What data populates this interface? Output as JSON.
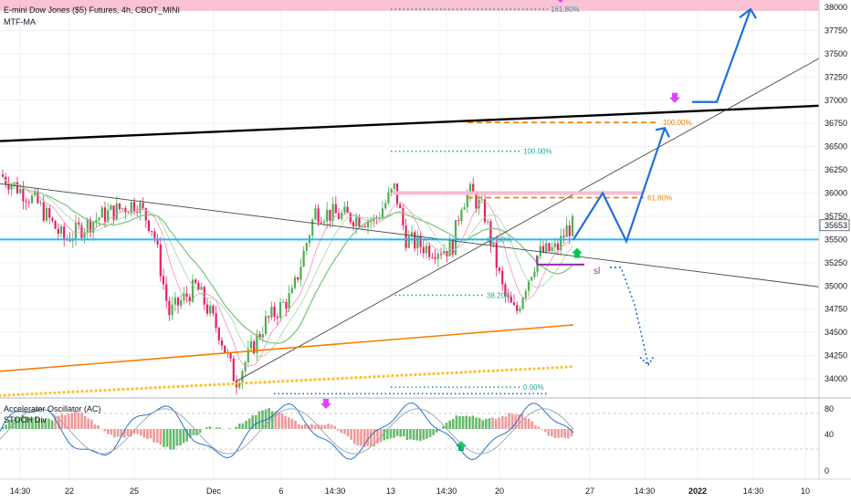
{
  "header": {
    "title": "E-mini Dow Jones ($5) Futures, 4h, CBOT_MINI",
    "indicator": "MTF-MA"
  },
  "oscillator": {
    "label1": "Accelerator Oscillator (AC)",
    "label2": "STOCH Div"
  },
  "colors": {
    "bull": "#26a69a",
    "bull_candle": "#4caf50",
    "bear": "#e91e63",
    "support_line": "#29b6f6",
    "trend_black": "#000000",
    "fib": "#26a69a",
    "orange": "#f57c00",
    "projection": "#1e6fe0",
    "pink_zone": "#f8bbd0",
    "marker_magenta": "#e040fb",
    "marker_green": "#00c853",
    "sl": "#9c27b0"
  },
  "chart_data": {
    "type": "candlestick",
    "price_axis": {
      "ticks": [
        34000,
        34250,
        34500,
        34750,
        35000,
        35250,
        35500,
        35750,
        36000,
        36250,
        36500,
        36750,
        37000,
        37250,
        37500,
        37750,
        38000
      ],
      "last_price": "35653"
    },
    "time_axis": {
      "ticks": [
        "14:30",
        "22",
        "25",
        "Dec",
        "6",
        "14:30",
        "13",
        "14:30",
        "20",
        "27",
        "14:30",
        "2022",
        "14:30",
        "10"
      ]
    },
    "oscillator_axis": {
      "ticks": [
        "80",
        "40",
        "0"
      ]
    },
    "fib_levels": [
      "161.80%",
      "100.00%",
      "61.80%",
      "38.20%",
      "0.00%"
    ],
    "orange_fib_levels": [
      "100.00%",
      "61.80%"
    ],
    "annotations": {
      "stop_loss": "sl"
    },
    "horizontal_support": 35500,
    "ohlc_ranges": {
      "start": 36200,
      "low": 33970,
      "high": 36050,
      "end": 35653
    }
  }
}
